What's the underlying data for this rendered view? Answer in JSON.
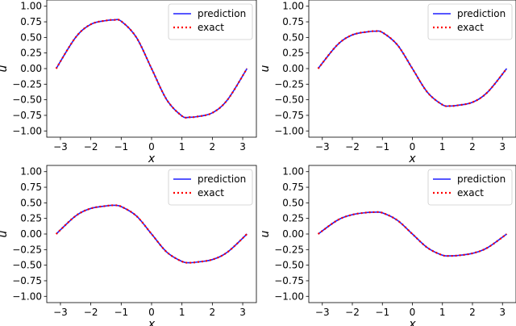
{
  "chart_data": [
    {
      "type": "line",
      "xlabel": "x",
      "ylabel": "u",
      "xlim": [
        -3.45,
        3.45
      ],
      "ylim": [
        -1.1,
        1.1
      ],
      "xticks": [
        -3,
        -2,
        -1,
        0,
        1,
        2,
        3
      ],
      "xtick_labels": [
        "−3",
        "−2",
        "−1",
        "0",
        "1",
        "2",
        "3"
      ],
      "yticks": [
        1.0,
        0.75,
        0.5,
        0.25,
        0.0,
        -0.25,
        -0.5,
        -0.75,
        -1.0
      ],
      "ytick_labels": [
        "1.00",
        "0.75",
        "0.50",
        "0.25",
        "0.00",
        "−0.25",
        "−0.50",
        "−0.75",
        "−1.00"
      ],
      "grid": false,
      "legend_position": "top-right",
      "series": [
        {
          "name": "prediction",
          "color": "#1f1fff",
          "style": "solid",
          "x": [
            -3.14,
            -2.5,
            -2.0,
            -1.5,
            -1.25,
            -1.0,
            -0.5,
            0.0,
            0.5,
            1.0,
            1.25,
            1.5,
            2.0,
            2.5,
            3.14
          ],
          "y": [
            0.0,
            0.5,
            0.71,
            0.77,
            0.78,
            0.76,
            0.5,
            0.0,
            -0.5,
            -0.76,
            -0.78,
            -0.77,
            -0.71,
            -0.5,
            0.0
          ]
        },
        {
          "name": "exact",
          "color": "#ff0000",
          "style": "dotted",
          "x": [
            -3.14,
            -2.5,
            -2.0,
            -1.5,
            -1.25,
            -1.0,
            -0.5,
            0.0,
            0.5,
            1.0,
            1.25,
            1.5,
            2.0,
            2.5,
            3.14
          ],
          "y": [
            0.0,
            0.5,
            0.71,
            0.77,
            0.78,
            0.76,
            0.5,
            0.0,
            -0.5,
            -0.76,
            -0.78,
            -0.77,
            -0.71,
            -0.5,
            0.0
          ]
        }
      ]
    },
    {
      "type": "line",
      "xlabel": "x",
      "ylabel": "u",
      "xlim": [
        -3.45,
        3.45
      ],
      "ylim": [
        -1.1,
        1.1
      ],
      "xticks": [
        -3,
        -2,
        -1,
        0,
        1,
        2,
        3
      ],
      "xtick_labels": [
        "−3",
        "−2",
        "−1",
        "0",
        "1",
        "2",
        "3"
      ],
      "yticks": [
        1.0,
        0.75,
        0.5,
        0.25,
        0.0,
        -0.25,
        -0.5,
        -0.75,
        -1.0
      ],
      "ytick_labels": [
        "1.00",
        "0.75",
        "0.50",
        "0.25",
        "0.00",
        "−0.25",
        "−0.50",
        "−0.75",
        "−1.00"
      ],
      "grid": false,
      "legend_position": "top-right",
      "series": [
        {
          "name": "prediction",
          "color": "#1f1fff",
          "style": "solid",
          "x": [
            -3.14,
            -2.5,
            -2.0,
            -1.5,
            -1.25,
            -1.0,
            -0.5,
            0.0,
            0.5,
            1.0,
            1.25,
            1.5,
            2.0,
            2.5,
            3.14
          ],
          "y": [
            0.0,
            0.38,
            0.54,
            0.59,
            0.6,
            0.58,
            0.38,
            0.0,
            -0.38,
            -0.58,
            -0.6,
            -0.59,
            -0.54,
            -0.38,
            0.0
          ]
        },
        {
          "name": "exact",
          "color": "#ff0000",
          "style": "dotted",
          "x": [
            -3.14,
            -2.5,
            -2.0,
            -1.5,
            -1.25,
            -1.0,
            -0.5,
            0.0,
            0.5,
            1.0,
            1.25,
            1.5,
            2.0,
            2.5,
            3.14
          ],
          "y": [
            0.0,
            0.38,
            0.54,
            0.59,
            0.6,
            0.58,
            0.38,
            0.0,
            -0.38,
            -0.58,
            -0.6,
            -0.59,
            -0.54,
            -0.38,
            0.0
          ]
        }
      ]
    },
    {
      "type": "line",
      "xlabel": "x",
      "ylabel": "u",
      "xlim": [
        -3.45,
        3.45
      ],
      "ylim": [
        -1.1,
        1.1
      ],
      "xticks": [
        -3,
        -2,
        -1,
        0,
        1,
        2,
        3
      ],
      "xtick_labels": [
        "−3",
        "−2",
        "−1",
        "0",
        "1",
        "2",
        "3"
      ],
      "yticks": [
        1.0,
        0.75,
        0.5,
        0.25,
        0.0,
        -0.25,
        -0.5,
        -0.75,
        -1.0
      ],
      "ytick_labels": [
        "1.00",
        "0.75",
        "0.50",
        "0.25",
        "0.00",
        "−0.25",
        "−0.50",
        "−0.75",
        "−1.00"
      ],
      "grid": false,
      "legend_position": "top-right",
      "series": [
        {
          "name": "prediction",
          "color": "#1f1fff",
          "style": "solid",
          "x": [
            -3.14,
            -2.5,
            -2.0,
            -1.5,
            -1.25,
            -1.0,
            -0.5,
            0.0,
            0.5,
            1.0,
            1.25,
            1.5,
            2.0,
            2.5,
            3.14
          ],
          "y": [
            0.0,
            0.29,
            0.41,
            0.45,
            0.46,
            0.44,
            0.29,
            0.0,
            -0.29,
            -0.44,
            -0.46,
            -0.45,
            -0.41,
            -0.29,
            0.0
          ]
        },
        {
          "name": "exact",
          "color": "#ff0000",
          "style": "dotted",
          "x": [
            -3.14,
            -2.5,
            -2.0,
            -1.5,
            -1.25,
            -1.0,
            -0.5,
            0.0,
            0.5,
            1.0,
            1.25,
            1.5,
            2.0,
            2.5,
            3.14
          ],
          "y": [
            0.0,
            0.29,
            0.41,
            0.45,
            0.46,
            0.44,
            0.29,
            0.0,
            -0.29,
            -0.44,
            -0.46,
            -0.45,
            -0.41,
            -0.29,
            0.0
          ]
        }
      ]
    },
    {
      "type": "line",
      "xlabel": "x",
      "ylabel": "u",
      "xlim": [
        -3.45,
        3.45
      ],
      "ylim": [
        -1.1,
        1.1
      ],
      "xticks": [
        -3,
        -2,
        -1,
        0,
        1,
        2,
        3
      ],
      "xtick_labels": [
        "−3",
        "−2",
        "−1",
        "0",
        "1",
        "2",
        "3"
      ],
      "yticks": [
        1.0,
        0.75,
        0.5,
        0.25,
        0.0,
        -0.25,
        -0.5,
        -0.75,
        -1.0
      ],
      "ytick_labels": [
        "1.00",
        "0.75",
        "0.50",
        "0.25",
        "0.00",
        "−0.25",
        "−0.50",
        "−0.75",
        "−1.00"
      ],
      "grid": false,
      "legend_position": "top-right",
      "series": [
        {
          "name": "prediction",
          "color": "#1f1fff",
          "style": "solid",
          "x": [
            -3.14,
            -2.5,
            -2.0,
            -1.5,
            -1.25,
            -1.0,
            -0.5,
            0.0,
            0.5,
            1.0,
            1.25,
            1.5,
            2.0,
            2.5,
            3.14
          ],
          "y": [
            0.0,
            0.22,
            0.31,
            0.345,
            0.35,
            0.34,
            0.22,
            0.0,
            -0.22,
            -0.34,
            -0.35,
            -0.345,
            -0.31,
            -0.22,
            0.0
          ]
        },
        {
          "name": "exact",
          "color": "#ff0000",
          "style": "dotted",
          "x": [
            -3.14,
            -2.5,
            -2.0,
            -1.5,
            -1.25,
            -1.0,
            -0.5,
            0.0,
            0.5,
            1.0,
            1.25,
            1.5,
            2.0,
            2.5,
            3.14
          ],
          "y": [
            0.0,
            0.22,
            0.31,
            0.345,
            0.35,
            0.34,
            0.22,
            0.0,
            -0.22,
            -0.34,
            -0.35,
            -0.345,
            -0.31,
            -0.22,
            0.0
          ]
        }
      ]
    }
  ]
}
